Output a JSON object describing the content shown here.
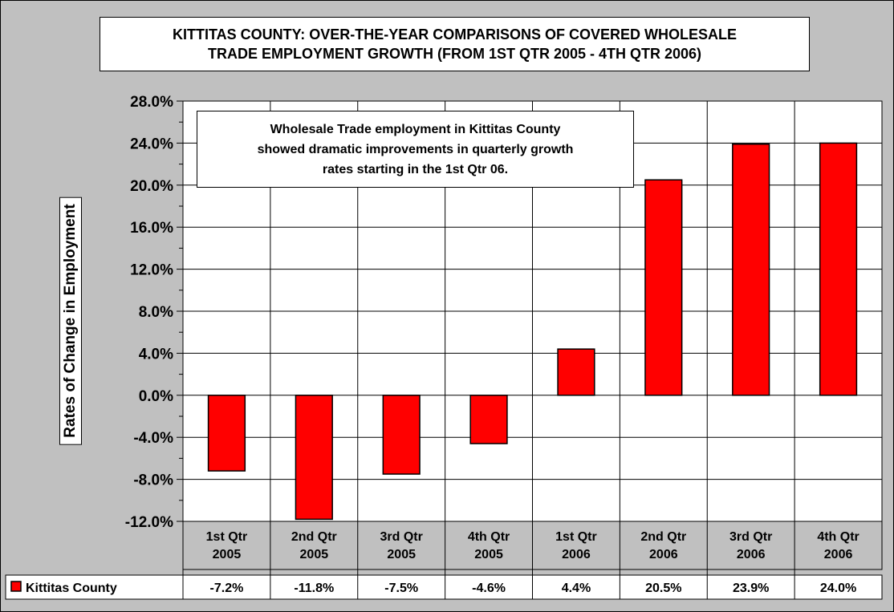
{
  "chart_data": {
    "type": "bar",
    "title_lines": [
      "KITTITAS COUNTY: OVER-THE-YEAR COMPARISONS OF COVERED WHOLESALE",
      "TRADE EMPLOYMENT GROWTH (FROM 1ST QTR 2005 - 4TH QTR 2006)"
    ],
    "ylabel": "Rates of Change in Employment",
    "categories": [
      [
        "1st Qtr",
        "2005"
      ],
      [
        "2nd Qtr",
        "2005"
      ],
      [
        "3rd Qtr",
        "2005"
      ],
      [
        "4th Qtr",
        "2005"
      ],
      [
        "1st Qtr",
        "2006"
      ],
      [
        "2nd Qtr",
        "2006"
      ],
      [
        "3rd Qtr",
        "2006"
      ],
      [
        "4th Qtr",
        "2006"
      ]
    ],
    "series": [
      {
        "name": "Kittitas County",
        "values": [
          -7.2,
          -11.8,
          -7.5,
          -4.6,
          4.4,
          20.5,
          23.9,
          24.0
        ],
        "labels": [
          "-7.2%",
          "-11.8%",
          "-7.5%",
          "-4.6%",
          "4.4%",
          "20.5%",
          "23.9%",
          "24.0%"
        ],
        "color": "#ff0000"
      }
    ],
    "ylim": [
      -12,
      28
    ],
    "ytick_step": 4,
    "ytick_labels": [
      "-12.0%",
      "-8.0%",
      "-4.0%",
      "0.0%",
      "4.0%",
      "8.0%",
      "12.0%",
      "16.0%",
      "20.0%",
      "24.0%",
      "28.0%"
    ],
    "grid": true,
    "legend": "data table",
    "annotation_lines": [
      "Wholesale Trade employment in Kittitas County",
      "showed dramatic improvements in quarterly growth",
      "rates starting in the 1st Qtr 06."
    ],
    "plot_bg": "#ffffff",
    "frame_bg": "#c0c0c0"
  }
}
